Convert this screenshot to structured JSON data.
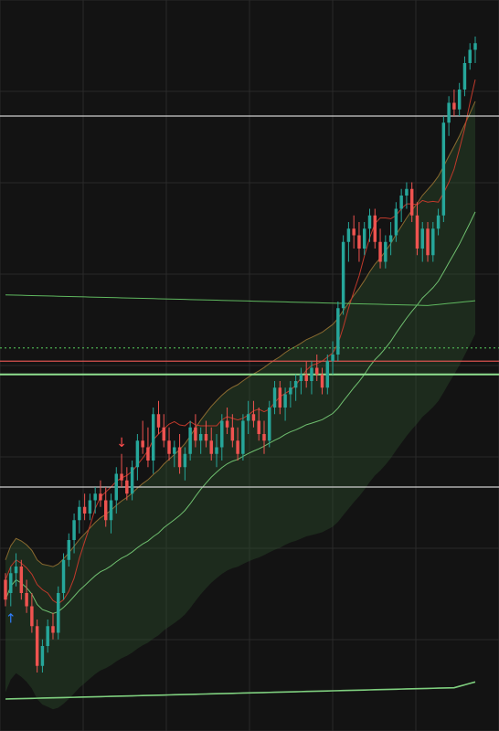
{
  "colors": {
    "background": "#131313",
    "grid": "#2a2a2a",
    "bull": "#26a69a",
    "bear": "#ef5350",
    "band_fill": "#2a4a2a",
    "band_upper_line": "#8a6a30",
    "band_mid_line": "#6fbf6f",
    "ma_red": "#c0392b",
    "ma_long": "#5fb85f",
    "ma_slow": "#7fd07f",
    "hline_white": "#cfcfcf",
    "hline_red": "#d9534f",
    "hline_dotted": "#4caf50",
    "hline_green": "#8fe08f",
    "arrow_up": "#2f7fff",
    "arrow_down": "#ff4d4d"
  },
  "markers": {
    "buy_arrow": "↑",
    "sell_arrow": "↓"
  },
  "chart_data": {
    "type": "candlestick",
    "title": "",
    "xlabel": "",
    "ylabel": "",
    "ylim": [
      0,
      100
    ],
    "grid": true,
    "candles": [
      [
        18,
        19,
        14,
        15
      ],
      [
        16,
        20,
        14,
        19
      ],
      [
        19,
        22,
        17,
        20
      ],
      [
        20,
        21,
        15,
        16
      ],
      [
        16,
        18,
        13,
        14
      ],
      [
        14,
        16,
        10,
        11
      ],
      [
        11,
        12,
        4,
        5
      ],
      [
        5,
        9,
        4,
        8
      ],
      [
        8,
        12,
        7,
        11
      ],
      [
        11,
        13,
        9,
        10
      ],
      [
        10,
        17,
        9,
        16
      ],
      [
        16,
        22,
        15,
        21
      ],
      [
        21,
        25,
        20,
        24
      ],
      [
        24,
        28,
        22,
        27
      ],
      [
        27,
        30,
        25,
        29
      ],
      [
        29,
        31,
        27,
        28
      ],
      [
        28,
        31,
        27,
        30
      ],
      [
        30,
        32,
        28,
        31
      ],
      [
        31,
        33,
        29,
        30
      ],
      [
        30,
        32,
        26,
        27
      ],
      [
        27,
        31,
        25,
        30
      ],
      [
        30,
        35,
        28,
        34
      ],
      [
        34,
        37,
        32,
        33
      ],
      [
        33,
        35,
        30,
        31
      ],
      [
        31,
        36,
        30,
        35
      ],
      [
        35,
        40,
        33,
        39
      ],
      [
        39,
        42,
        37,
        38
      ],
      [
        38,
        41,
        35,
        36
      ],
      [
        36,
        44,
        34,
        43
      ],
      [
        43,
        45,
        40,
        41
      ],
      [
        41,
        43,
        38,
        39
      ],
      [
        39,
        41,
        36,
        37
      ],
      [
        37,
        39,
        35,
        38
      ],
      [
        38,
        40,
        34,
        35
      ],
      [
        35,
        38,
        33,
        37
      ],
      [
        37,
        42,
        36,
        41
      ],
      [
        41,
        43,
        38,
        39
      ],
      [
        39,
        41,
        37,
        40
      ],
      [
        40,
        42,
        38,
        39
      ],
      [
        39,
        41,
        36,
        37
      ],
      [
        37,
        40,
        35,
        38
      ],
      [
        38,
        43,
        36,
        42
      ],
      [
        42,
        44,
        40,
        41
      ],
      [
        41,
        43,
        38,
        39
      ],
      [
        39,
        41,
        36,
        37
      ],
      [
        37,
        43,
        36,
        42
      ],
      [
        42,
        45,
        40,
        43
      ],
      [
        43,
        45,
        41,
        42
      ],
      [
        42,
        44,
        39,
        40
      ],
      [
        40,
        42,
        37,
        39
      ],
      [
        39,
        45,
        38,
        44
      ],
      [
        44,
        48,
        43,
        47
      ],
      [
        47,
        48,
        43,
        44
      ],
      [
        44,
        47,
        42,
        46
      ],
      [
        46,
        48,
        44,
        47
      ],
      [
        47,
        49,
        45,
        48
      ],
      [
        48,
        50,
        46,
        49
      ],
      [
        49,
        51,
        47,
        48
      ],
      [
        48,
        51,
        46,
        50
      ],
      [
        50,
        52,
        48,
        49
      ],
      [
        49,
        50,
        46,
        47
      ],
      [
        47,
        52,
        46,
        51
      ],
      [
        51,
        54,
        49,
        52
      ],
      [
        52,
        60,
        51,
        59
      ],
      [
        59,
        70,
        58,
        69
      ],
      [
        69,
        72,
        66,
        71
      ],
      [
        71,
        73,
        68,
        70
      ],
      [
        70,
        72,
        66,
        68
      ],
      [
        68,
        72,
        67,
        71
      ],
      [
        71,
        74,
        69,
        73
      ],
      [
        73,
        74,
        68,
        69
      ],
      [
        69,
        71,
        65,
        66
      ],
      [
        66,
        70,
        65,
        69
      ],
      [
        69,
        72,
        67,
        70
      ],
      [
        70,
        75,
        69,
        74
      ],
      [
        74,
        77,
        72,
        76
      ],
      [
        76,
        78,
        74,
        77
      ],
      [
        77,
        78,
        72,
        73
      ],
      [
        73,
        75,
        67,
        68
      ],
      [
        68,
        72,
        66,
        71
      ],
      [
        71,
        72,
        66,
        67
      ],
      [
        67,
        72,
        66,
        71
      ],
      [
        71,
        74,
        70,
        73
      ],
      [
        73,
        88,
        72,
        87
      ],
      [
        87,
        91,
        85,
        90
      ],
      [
        90,
        92,
        88,
        89
      ],
      [
        89,
        93,
        88,
        92
      ],
      [
        92,
        97,
        91,
        96
      ],
      [
        96,
        99,
        95,
        98
      ],
      [
        98,
        100,
        96,
        99
      ]
    ],
    "horizontal_levels": [
      {
        "value": 88,
        "style": "solid",
        "color_key": "hline_white"
      },
      {
        "value": 53,
        "style": "dotted",
        "color_key": "hline_dotted"
      },
      {
        "value": 51,
        "style": "solid",
        "color_key": "hline_red"
      },
      {
        "value": 49,
        "style": "solid",
        "color_key": "hline_green"
      },
      {
        "value": 32,
        "style": "solid",
        "color_key": "hline_white"
      }
    ],
    "signals": [
      {
        "index": 1,
        "type": "buy"
      },
      {
        "index": 22,
        "type": "sell"
      }
    ]
  }
}
